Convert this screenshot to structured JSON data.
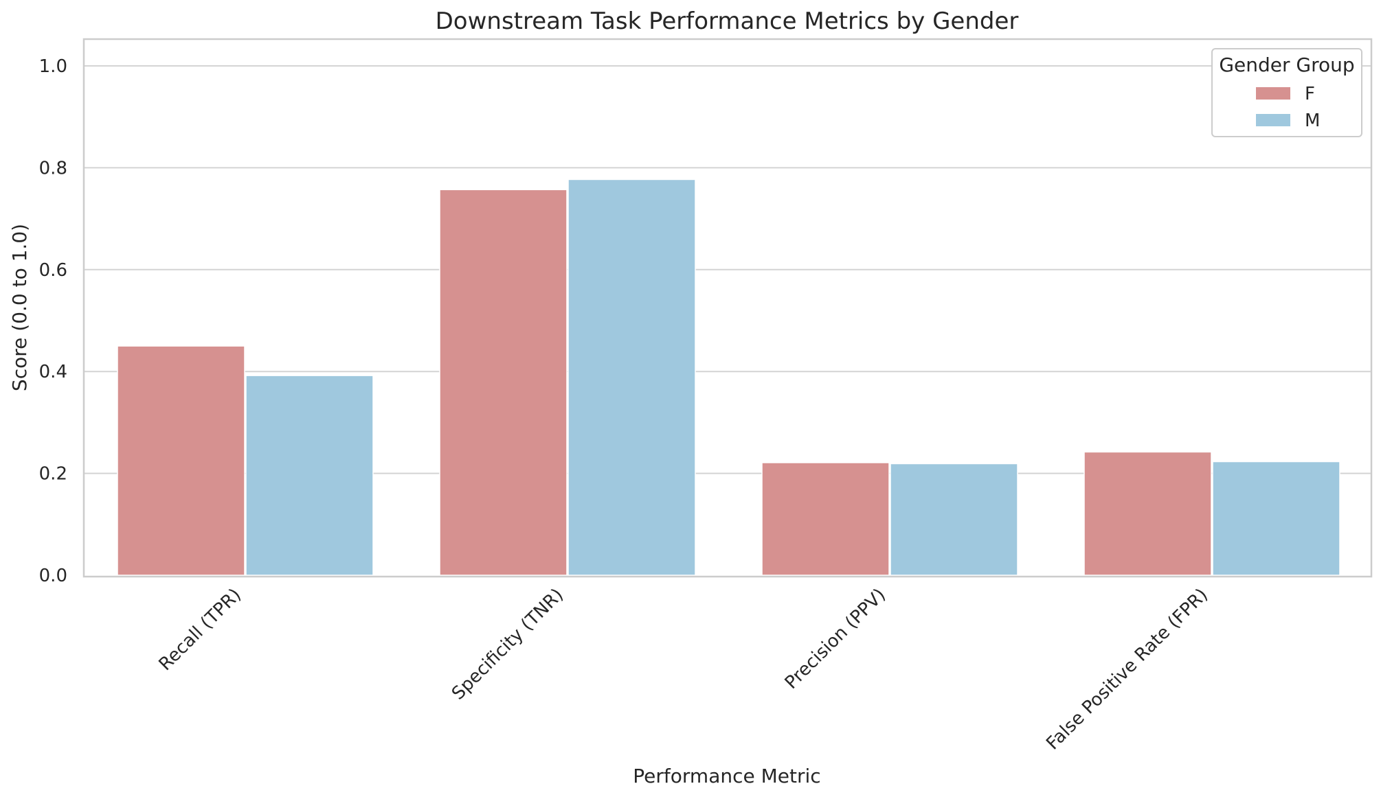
{
  "chart_data": {
    "type": "bar",
    "title": "Downstream Task Performance Metrics by Gender",
    "xlabel": "Performance Metric",
    "ylabel": "Score (0.0 to 1.0)",
    "categories": [
      "Recall (TPR)",
      "Specificity (TNR)",
      "Precision (PPV)",
      "False Positive Rate (FPR)"
    ],
    "series": [
      {
        "name": "F",
        "color": "#d69190",
        "values": [
          0.45,
          0.757,
          0.221,
          0.242
        ]
      },
      {
        "name": "M",
        "color": "#9fc8de",
        "values": [
          0.392,
          0.777,
          0.219,
          0.223
        ]
      }
    ],
    "ylim": [
      0,
      1.05
    ],
    "yticks": [
      0.0,
      0.2,
      0.4,
      0.6,
      0.8,
      1.0
    ],
    "ytick_labels": [
      "0.0",
      "0.2",
      "0.4",
      "0.6",
      "0.8",
      "1.0"
    ],
    "grid": "horizontal",
    "legend": {
      "title": "Gender Group",
      "placement": "top-right"
    }
  }
}
